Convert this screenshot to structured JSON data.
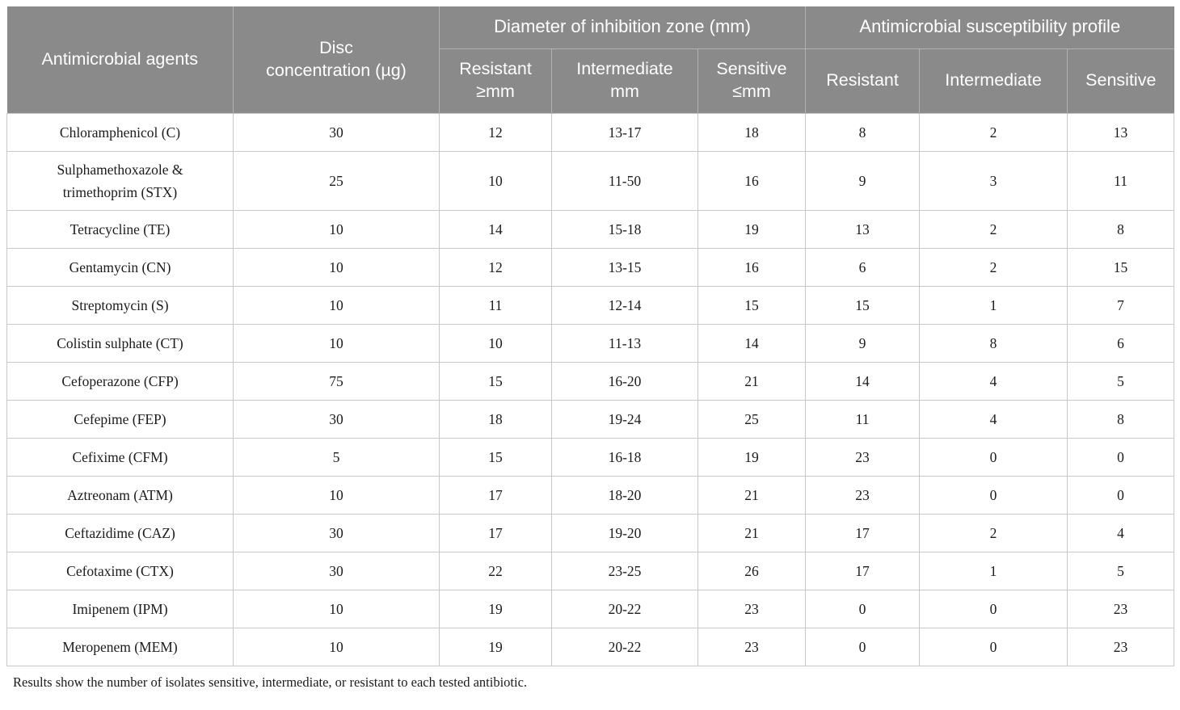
{
  "colors": {
    "header_bg": "#8a8a8a",
    "header_text": "#ffffff",
    "header_divider": "#b2b2b2",
    "body_border": "#c8c8c8",
    "body_text": "#1b1b1b"
  },
  "table": {
    "header": {
      "agents": "Antimicrobial agents",
      "disc": "Disc\nconcentration (µg)",
      "group_zone": "Diameter of inhibition zone (mm)",
      "group_profile": "Antimicrobial susceptibility profile",
      "sub_zone_resistant": "Resistant\n≥mm",
      "sub_zone_intermediate": "Intermediate\nmm",
      "sub_zone_sensitive": "Sensitive\n≤mm",
      "sub_profile_resistant": "Resistant",
      "sub_profile_intermediate": "Intermediate",
      "sub_profile_sensitive": "Sensitive"
    },
    "rows": [
      [
        "Chloramphenicol (C)",
        "30",
        "12",
        "13-17",
        "18",
        "8",
        "2",
        "13"
      ],
      [
        "Sulphamethoxazole & trimethoprim (STX)",
        "25",
        "10",
        "11-50",
        "16",
        "9",
        "3",
        "11"
      ],
      [
        "Tetracycline (TE)",
        "10",
        "14",
        "15-18",
        "19",
        "13",
        "2",
        "8"
      ],
      [
        "Gentamycin (CN)",
        "10",
        "12",
        "13-15",
        "16",
        "6",
        "2",
        "15"
      ],
      [
        "Streptomycin (S)",
        "10",
        "11",
        "12-14",
        "15",
        "15",
        "1",
        "7"
      ],
      [
        "Colistin sulphate (CT)",
        "10",
        "10",
        "11-13",
        "14",
        "9",
        "8",
        "6"
      ],
      [
        "Cefoperazone (CFP)",
        "75",
        "15",
        "16-20",
        "21",
        "14",
        "4",
        "5"
      ],
      [
        "Cefepime (FEP)",
        "30",
        "18",
        "19-24",
        "25",
        "11",
        "4",
        "8"
      ],
      [
        "Cefixime (CFM)",
        "5",
        "15",
        "16-18",
        "19",
        "23",
        "0",
        "0"
      ],
      [
        "Aztreonam (ATM)",
        "10",
        "17",
        "18-20",
        "21",
        "23",
        "0",
        "0"
      ],
      [
        "Ceftazidime (CAZ)",
        "30",
        "17",
        "19-20",
        "21",
        "17",
        "2",
        "4"
      ],
      [
        "Cefotaxime (CTX)",
        "30",
        "22",
        "23-25",
        "26",
        "17",
        "1",
        "5"
      ],
      [
        "Imipenem (IPM)",
        "10",
        "19",
        "20-22",
        "23",
        "0",
        "0",
        "23"
      ],
      [
        "Meropenem (MEM)",
        "10",
        "19",
        "20-22",
        "23",
        "0",
        "0",
        "23"
      ]
    ],
    "footnote": "Results show the number of isolates sensitive, intermediate, or resistant to each tested antibiotic."
  }
}
